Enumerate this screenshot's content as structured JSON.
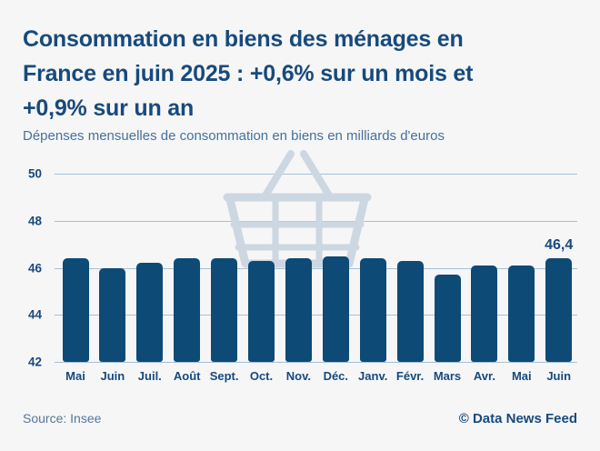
{
  "page": {
    "background": "#f6f6f7"
  },
  "header": {
    "title": "Consommation en biens des ménages en France en juin 2025 : +0,6% sur un mois et +0,9% sur un an",
    "title_lines": [
      "Consommation en biens des ménages en",
      "France en juin 2025 : +0,6% sur un mois et",
      "+0,9% sur un an"
    ],
    "subtitle": "Dépenses mensuelles de consommation en biens en milliards d'euros"
  },
  "chart_data": {
    "type": "bar",
    "title": "Consommation en biens des ménages en France en juin 2025 : +0,6% sur un mois et +0,9% sur un an",
    "subtitle": "Dépenses mensuelles de consommation en biens en milliards d'euros",
    "categories": [
      "Mai",
      "Juin",
      "Juil.",
      "Août",
      "Sept.",
      "Oct.",
      "Nov.",
      "Déc.",
      "Janv.",
      "Févr.",
      "Mars",
      "Avr.",
      "Mai",
      "Juin"
    ],
    "values": [
      46.4,
      46.0,
      46.2,
      46.4,
      46.4,
      46.3,
      46.4,
      46.5,
      46.4,
      46.3,
      45.7,
      46.1,
      46.1,
      46.4
    ],
    "xlabel": "",
    "ylabel": "milliards d'euros",
    "ylim": [
      42,
      50
    ],
    "yticks": [
      50,
      48,
      46,
      44,
      42
    ],
    "grid": true,
    "legend": "none",
    "annotation": {
      "index": 13,
      "text": "46,4"
    },
    "watermark": "shopping-basket-icon",
    "colors": {
      "bar": "#0d4a76",
      "gridline": "#a6c0d6",
      "axis_label": "#174a7c",
      "watermark": "#ccd7e2"
    }
  },
  "footer": {
    "source": "Source: Insee",
    "credit": "© Data News Feed"
  }
}
